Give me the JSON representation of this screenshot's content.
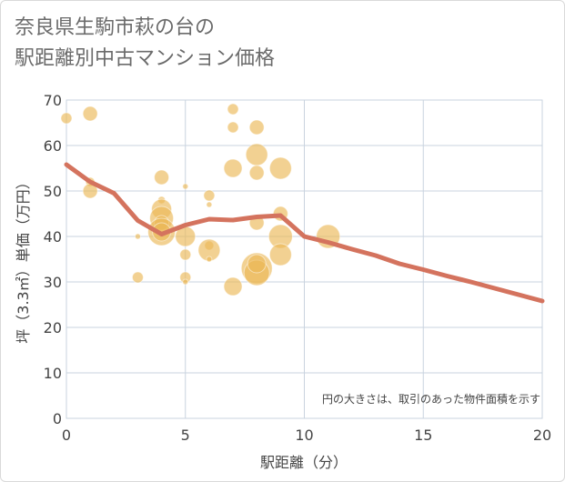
{
  "title_line1": "奈良県生駒市萩の台の",
  "title_line2": "駅距離別中古マンション価格",
  "chart_data": {
    "type": "scatter",
    "xlabel": "駅距離（分）",
    "ylabel": "坪（3.3㎡）単価（万円）",
    "note": "円の大きさは、取引のあった物件面積を示す",
    "xlim": [
      0,
      20
    ],
    "ylim": [
      0,
      70
    ],
    "x_ticks": [
      "0",
      "5",
      "10",
      "15",
      "20"
    ],
    "y_ticks": [
      "0",
      "10",
      "20",
      "30",
      "40",
      "50",
      "60",
      "70"
    ],
    "grid": true,
    "bubble_color": "#ebb957",
    "line_color": "#d4735e",
    "points": [
      {
        "x": 0,
        "y": 66,
        "size": 6
      },
      {
        "x": 1,
        "y": 67,
        "size": 8
      },
      {
        "x": 1,
        "y": 52,
        "size": 5
      },
      {
        "x": 1,
        "y": 50,
        "size": 8
      },
      {
        "x": 3,
        "y": 40,
        "size": 3
      },
      {
        "x": 3,
        "y": 31,
        "size": 6
      },
      {
        "x": 4,
        "y": 53,
        "size": 8
      },
      {
        "x": 4,
        "y": 48,
        "size": 4
      },
      {
        "x": 4,
        "y": 46,
        "size": 11
      },
      {
        "x": 4,
        "y": 44,
        "size": 13
      },
      {
        "x": 4,
        "y": 43,
        "size": 8
      },
      {
        "x": 4,
        "y": 41,
        "size": 15
      },
      {
        "x": 4,
        "y": 41,
        "size": 10
      },
      {
        "x": 5,
        "y": 51,
        "size": 3
      },
      {
        "x": 5,
        "y": 40,
        "size": 11
      },
      {
        "x": 5,
        "y": 36,
        "size": 6
      },
      {
        "x": 5,
        "y": 31,
        "size": 6
      },
      {
        "x": 5,
        "y": 30,
        "size": 3
      },
      {
        "x": 6,
        "y": 49,
        "size": 6
      },
      {
        "x": 6,
        "y": 47,
        "size": 3
      },
      {
        "x": 6,
        "y": 38,
        "size": 5
      },
      {
        "x": 6,
        "y": 37,
        "size": 12
      },
      {
        "x": 6,
        "y": 35,
        "size": 3
      },
      {
        "x": 7,
        "y": 68,
        "size": 6
      },
      {
        "x": 7,
        "y": 64,
        "size": 6
      },
      {
        "x": 7,
        "y": 55,
        "size": 10
      },
      {
        "x": 7,
        "y": 29,
        "size": 10
      },
      {
        "x": 8,
        "y": 64,
        "size": 8
      },
      {
        "x": 8,
        "y": 58,
        "size": 12
      },
      {
        "x": 8,
        "y": 54,
        "size": 8
      },
      {
        "x": 8,
        "y": 43,
        "size": 8
      },
      {
        "x": 8,
        "y": 33,
        "size": 17
      },
      {
        "x": 8,
        "y": 32,
        "size": 14
      },
      {
        "x": 8,
        "y": 34,
        "size": 10
      },
      {
        "x": 9,
        "y": 55,
        "size": 12
      },
      {
        "x": 9,
        "y": 45,
        "size": 8
      },
      {
        "x": 9,
        "y": 40,
        "size": 13
      },
      {
        "x": 9,
        "y": 36,
        "size": 12
      },
      {
        "x": 11,
        "y": 40,
        "size": 13
      }
    ],
    "trend": {
      "x": [
        0,
        1,
        2,
        3,
        4,
        5,
        6,
        7,
        8,
        9,
        10,
        11,
        12,
        13,
        14,
        15,
        16,
        17,
        18,
        19,
        20
      ],
      "y": [
        55.8,
        52,
        49.5,
        43.5,
        40.5,
        42.5,
        43.8,
        43.6,
        44.3,
        44.6,
        40,
        38.7,
        37.2,
        35.8,
        34,
        32.7,
        31.3,
        30,
        28.6,
        27.2,
        25.8
      ]
    }
  }
}
